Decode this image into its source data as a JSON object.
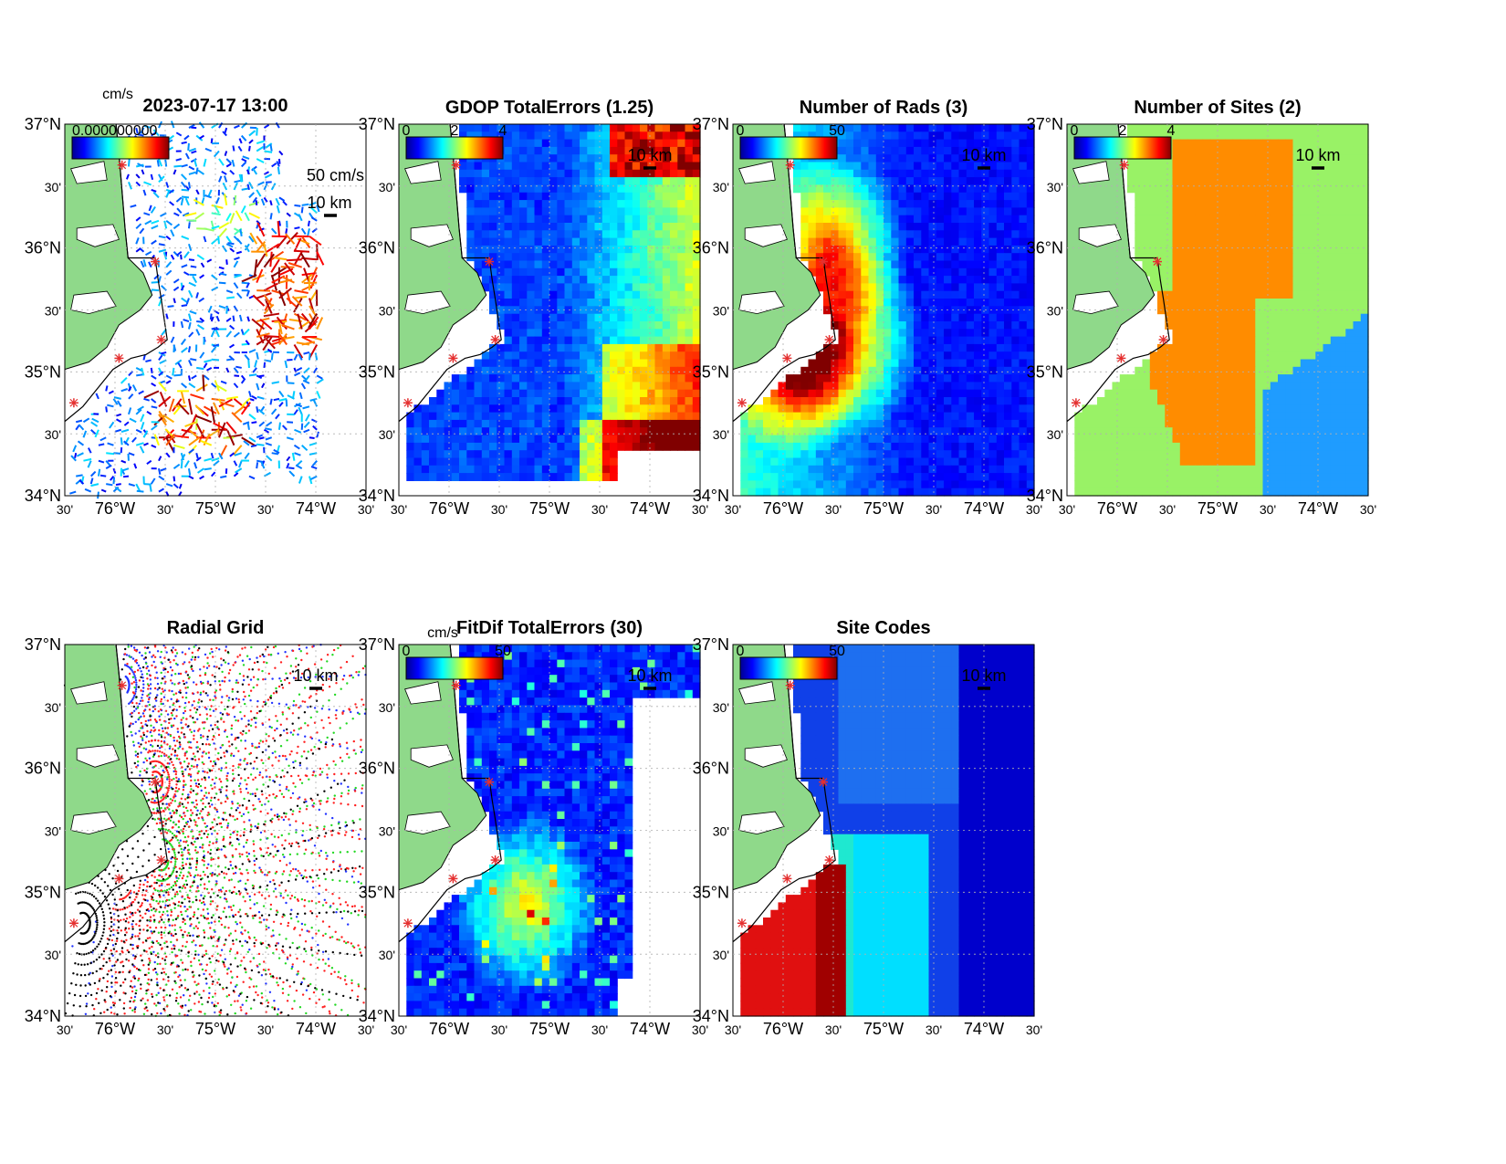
{
  "figure": {
    "timestamp": "2023-07-17 13:00",
    "overlap_label": "0.000000000",
    "units_label": "cm/s"
  },
  "axes": {
    "lat_ticks": [
      "37°N",
      "30'",
      "36°N",
      "30'",
      "35°N",
      "30'",
      "34°N"
    ],
    "lon_ticks": [
      "30'",
      "76°W",
      "30'",
      "75°W",
      "30'",
      "74°W",
      "30'"
    ]
  },
  "panels": [
    {
      "id": "currents",
      "title": "",
      "colorbar": {
        "labels": [],
        "unit": ""
      },
      "annotations": {
        "vector_scale": "50 cm/s",
        "scale_bar": "10 km",
        "contour": "100"
      }
    },
    {
      "id": "gdop",
      "title": "GDOP TotalErrors (1.25)",
      "colorbar": {
        "labels": [
          "0",
          "2",
          "4"
        ],
        "unit": ""
      },
      "annotations": {
        "scale_bar": "10 km",
        "contour": "1.25"
      }
    },
    {
      "id": "rads",
      "title": "Number of Rads (3)",
      "colorbar": {
        "labels": [
          "0",
          "50"
        ],
        "unit": ""
      },
      "annotations": {
        "scale_bar": "10 km",
        "contour": "3"
      }
    },
    {
      "id": "sites",
      "title": "Number of Sites (2)",
      "colorbar": {
        "labels": [
          "0",
          "2",
          "4"
        ],
        "unit": ""
      },
      "annotations": {
        "scale_bar": "10 km",
        "contour": "2"
      }
    },
    {
      "id": "radial-grid",
      "title": "Radial Grid",
      "colorbar": {
        "labels": [],
        "unit": ""
      },
      "annotations": {
        "scale_bar": "10 km",
        "contour": "100"
      }
    },
    {
      "id": "fitdif",
      "title": "FitDif TotalErrors (30)",
      "colorbar": {
        "labels": [
          "0",
          "50"
        ],
        "unit": "cm/s"
      },
      "annotations": {
        "scale_bar": "10 km",
        "contour": "30"
      }
    },
    {
      "id": "site-codes",
      "title": "Site Codes",
      "colorbar": {
        "labels": [
          "0",
          "50"
        ],
        "unit": ""
      },
      "annotations": {
        "scale_bar": "10 km",
        "contour": ""
      }
    }
  ],
  "colors": {
    "land": "#8fd98a",
    "coast_sites": "#e53030",
    "jet_low": "#00008f",
    "jet_high": "#800000",
    "grid": "#b0b0b0"
  }
}
